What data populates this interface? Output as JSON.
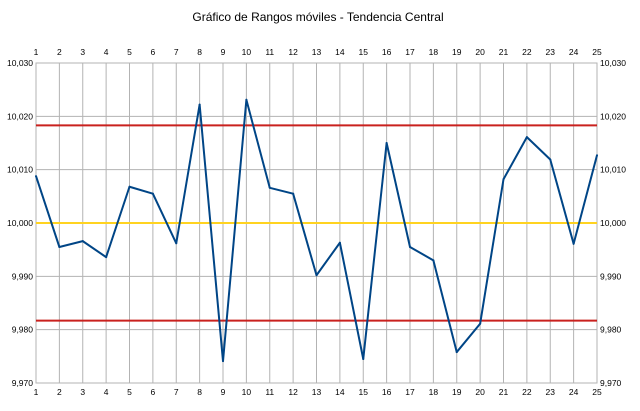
{
  "chart_data": {
    "type": "line",
    "title": "Gráfico de Rangos móviles - Tendencia Central",
    "x": [
      1,
      2,
      3,
      4,
      5,
      6,
      7,
      8,
      9,
      10,
      11,
      12,
      13,
      14,
      15,
      16,
      17,
      18,
      19,
      20,
      21,
      22,
      23,
      24,
      25
    ],
    "series": [
      {
        "values": [
          10.0088,
          9.9955,
          9.9966,
          9.9936,
          10.0068,
          10.0055,
          9.9962,
          10.0222,
          9.9741,
          10.0231,
          10.0066,
          10.0055,
          9.9902,
          9.9963,
          9.9745,
          10.015,
          9.9955,
          9.993,
          9.9758,
          9.9811,
          10.0082,
          10.0161,
          10.0119,
          9.9961,
          10.0127
        ],
        "color": "#004586"
      }
    ],
    "reference_lines": [
      {
        "value": 10.0183,
        "color": "#c9211e",
        "role": "upper"
      },
      {
        "value": 10.0,
        "color": "#ffd320",
        "role": "center"
      },
      {
        "value": 9.9817,
        "color": "#c9211e",
        "role": "lower"
      }
    ],
    "ylim": [
      9.97,
      10.03
    ],
    "yticks": [
      9.97,
      9.98,
      9.99,
      10.0,
      10.01,
      10.02,
      10.03
    ],
    "ytick_labels": [
      "9,970",
      "9,980",
      "9,990",
      "10,000",
      "10,010",
      "10,020",
      "10,030"
    ],
    "xtick_labels": [
      "1",
      "2",
      "3",
      "4",
      "5",
      "6",
      "7",
      "8",
      "9",
      "10",
      "11",
      "12",
      "13",
      "14",
      "15",
      "16",
      "17",
      "18",
      "19",
      "20",
      "21",
      "22",
      "23",
      "24",
      "25"
    ],
    "grid": true,
    "xlabel": "",
    "ylabel": ""
  }
}
